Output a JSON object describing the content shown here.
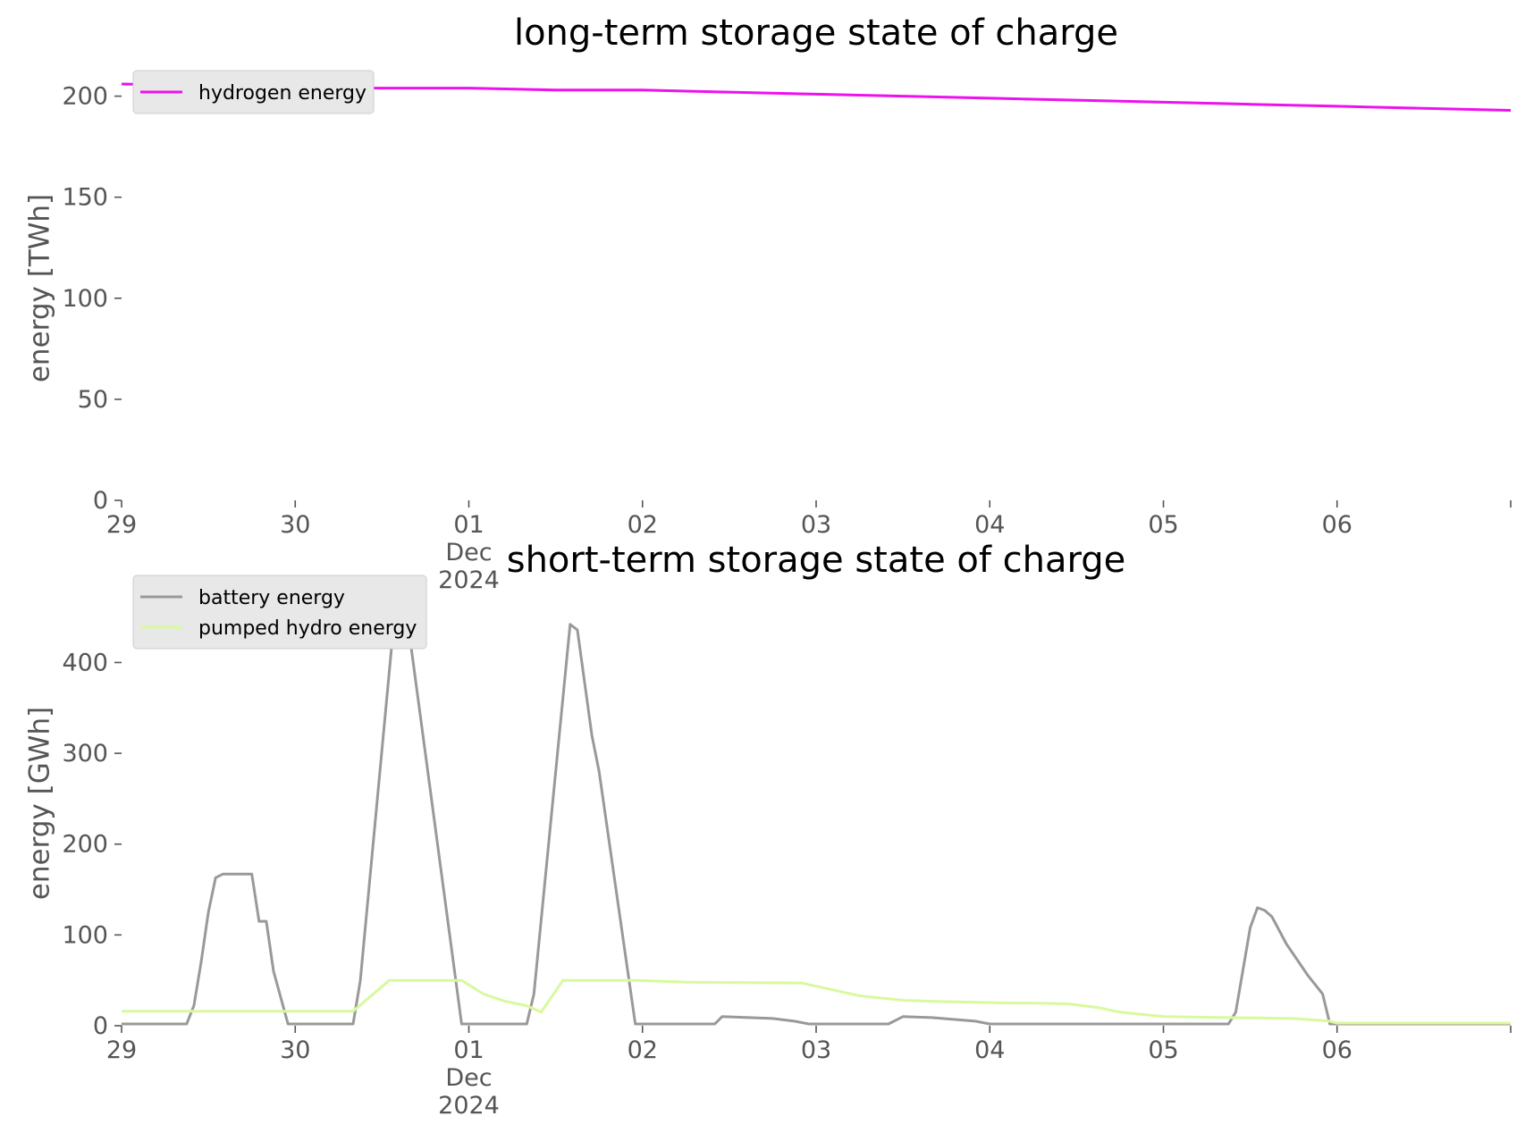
{
  "chart_data": [
    {
      "type": "line",
      "title": "long-term storage state of charge",
      "ylabel": "energy [TWh]",
      "ylim": [
        0,
        210
      ],
      "yticks": [
        0,
        50,
        100,
        150,
        200
      ],
      "x_range": [
        "2024-11-29",
        "2024-12-07"
      ],
      "xticks": [
        {
          "date": "2024-11-29",
          "label": [
            "29"
          ]
        },
        {
          "date": "2024-11-30",
          "label": [
            "30"
          ]
        },
        {
          "date": "2024-12-01",
          "label": [
            "01",
            "Dec",
            "2024"
          ]
        },
        {
          "date": "2024-12-02",
          "label": [
            "02"
          ]
        },
        {
          "date": "2024-12-03",
          "label": [
            "03"
          ]
        },
        {
          "date": "2024-12-04",
          "label": [
            "04"
          ]
        },
        {
          "date": "2024-12-05",
          "label": [
            "05"
          ]
        },
        {
          "date": "2024-12-06",
          "label": [
            "06"
          ]
        },
        {
          "date": "2024-12-07",
          "label": [
            ""
          ]
        }
      ],
      "legend_position": "top-left",
      "grid": false,
      "series": [
        {
          "name": "hydrogen energy",
          "color": "#ee11ee",
          "x": [
            "2024-11-29 00:00",
            "2024-11-29 12:00",
            "2024-11-30 00:00",
            "2024-11-30 12:00",
            "2024-12-01 00:00",
            "2024-12-01 12:00",
            "2024-12-02 00:00",
            "2024-12-02 12:00",
            "2024-12-03 00:00",
            "2024-12-03 12:00",
            "2024-12-04 00:00",
            "2024-12-04 12:00",
            "2024-12-05 00:00",
            "2024-12-05 12:00",
            "2024-12-06 00:00",
            "2024-12-06 12:00",
            "2024-12-07 00:00"
          ],
          "values": [
            206,
            205,
            204,
            204,
            204,
            203,
            203,
            202,
            201,
            200,
            199,
            198,
            197,
            196,
            195,
            194,
            193
          ]
        }
      ]
    },
    {
      "type": "line",
      "title": "short-term storage state of charge",
      "ylabel": "energy [GWh]",
      "ylim": [
        0,
        490
      ],
      "yticks": [
        0,
        100,
        200,
        300,
        400
      ],
      "x_range": [
        "2024-11-29",
        "2024-12-07"
      ],
      "xticks": [
        {
          "date": "2024-11-29",
          "label": [
            "29"
          ]
        },
        {
          "date": "2024-11-30",
          "label": [
            "30"
          ]
        },
        {
          "date": "2024-12-01",
          "label": [
            "01",
            "Dec",
            "2024"
          ]
        },
        {
          "date": "2024-12-02",
          "label": [
            "02"
          ]
        },
        {
          "date": "2024-12-03",
          "label": [
            "03"
          ]
        },
        {
          "date": "2024-12-04",
          "label": [
            "04"
          ]
        },
        {
          "date": "2024-12-05",
          "label": [
            "05"
          ]
        },
        {
          "date": "2024-12-06",
          "label": [
            "06"
          ]
        },
        {
          "date": "2024-12-07",
          "label": [
            ""
          ]
        }
      ],
      "legend_position": "top-left",
      "grid": false,
      "series": [
        {
          "name": "battery energy",
          "color": "#999999",
          "x": [
            "2024-11-29 00:00",
            "2024-11-29 09:00",
            "2024-11-29 10:00",
            "2024-11-29 11:00",
            "2024-11-29 12:00",
            "2024-11-29 13:00",
            "2024-11-29 14:00",
            "2024-11-29 15:00",
            "2024-11-29 18:00",
            "2024-11-29 19:00",
            "2024-11-29 20:00",
            "2024-11-29 21:00",
            "2024-11-29 23:00",
            "2024-11-30 08:00",
            "2024-11-30 09:00",
            "2024-11-30 14:00",
            "2024-11-30 15:00",
            "2024-11-30 16:00",
            "2024-11-30 23:00",
            "2024-12-01 08:00",
            "2024-12-01 09:00",
            "2024-12-01 14:00",
            "2024-12-01 15:00",
            "2024-12-01 17:00",
            "2024-12-01 18:00",
            "2024-12-01 23:00",
            "2024-12-02 10:00",
            "2024-12-02 11:00",
            "2024-12-02 18:00",
            "2024-12-02 21:00",
            "2024-12-02 23:00",
            "2024-12-03 10:00",
            "2024-12-03 12:00",
            "2024-12-03 16:00",
            "2024-12-03 22:00",
            "2024-12-04 00:00",
            "2024-12-05 09:00",
            "2024-12-05 10:00",
            "2024-12-05 12:00",
            "2024-12-05 13:00",
            "2024-12-05 14:00",
            "2024-12-05 15:00",
            "2024-12-05 17:00",
            "2024-12-05 20:00",
            "2024-12-05 22:00",
            "2024-12-05 23:00",
            "2024-12-06 00:00",
            "2024-12-07 00:00"
          ],
          "values": [
            2,
            2,
            22,
            70,
            125,
            163,
            167,
            167,
            167,
            115,
            115,
            60,
            2,
            2,
            50,
            475,
            468,
            418,
            2,
            2,
            35,
            442,
            436,
            320,
            280,
            2,
            2,
            10,
            8,
            5,
            2,
            2,
            10,
            9,
            5,
            2,
            2,
            15,
            108,
            130,
            127,
            120,
            90,
            55,
            35,
            2,
            2,
            2
          ]
        },
        {
          "name": "pumped hydro energy",
          "color": "#d9f99d",
          "x": [
            "2024-11-29 00:00",
            "2024-11-30 08:00",
            "2024-11-30 13:00",
            "2024-11-30 23:00",
            "2024-12-01 02:00",
            "2024-12-01 05:00",
            "2024-12-01 08:00",
            "2024-12-01 10:00",
            "2024-12-01 13:00",
            "2024-12-01 23:00",
            "2024-12-02 06:00",
            "2024-12-02 22:00",
            "2024-12-03 02:00",
            "2024-12-03 06:00",
            "2024-12-03 12:00",
            "2024-12-03 16:00",
            "2024-12-04 03:00",
            "2024-12-04 06:00",
            "2024-12-04 11:00",
            "2024-12-04 15:00",
            "2024-12-04 18:00",
            "2024-12-05 00:00",
            "2024-12-05 18:00",
            "2024-12-05 23:00",
            "2024-12-06 00:00",
            "2024-12-07 00:00"
          ],
          "values": [
            16,
            16,
            50,
            50,
            35,
            27,
            22,
            15,
            50,
            50,
            48,
            47,
            40,
            33,
            28,
            27,
            25,
            25,
            24,
            20,
            15,
            10,
            8,
            5,
            3,
            3
          ]
        }
      ]
    }
  ]
}
